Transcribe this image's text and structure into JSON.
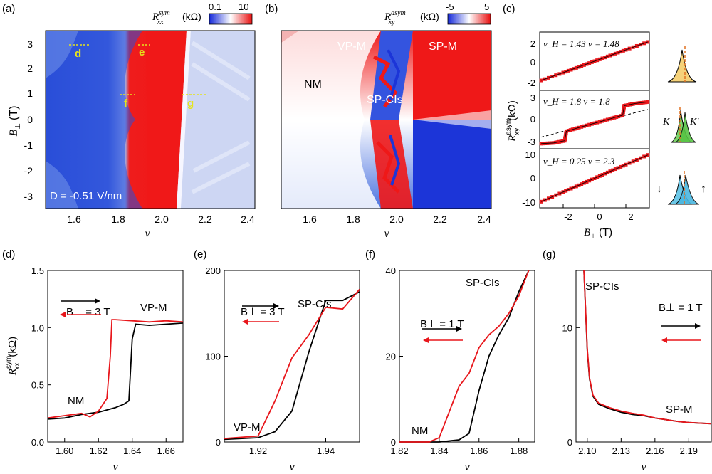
{
  "panels": {
    "a": {
      "letter": "(a)",
      "cb_label": "R",
      "cb_sup": "sym",
      "cb_sub": "xx",
      "cb_unit": "(kΩ)",
      "cb_min": "0.1",
      "cb_max": "10",
      "xlabel": "ν",
      "ylabel": "B",
      "ylabel_sub": "⊥",
      "ylabel_unit": "(T)",
      "xticks": [
        "1.6",
        "1.8",
        "2.0",
        "2.2",
        "2.4"
      ],
      "yticks": [
        "3",
        "2",
        "1",
        "0",
        "-1",
        "-2",
        "-3"
      ],
      "annotation": "D = -0.51 V/nm",
      "markers": [
        "d",
        "e",
        "f",
        "g"
      ]
    },
    "b": {
      "letter": "(b)",
      "cb_label": "R",
      "cb_sup": "asym",
      "cb_sub": "xy",
      "cb_unit": "(kΩ)",
      "cb_min": "-5",
      "cb_max": "5",
      "xlabel": "ν",
      "xticks": [
        "1.6",
        "1.8",
        "2.0",
        "2.2",
        "2.4"
      ],
      "region_labels": [
        "NM",
        "VP-M",
        "SP-M",
        "SP-CIs"
      ]
    },
    "c": {
      "letter": "(c)",
      "ylabel": "R",
      "ylabel_sup": "asym",
      "ylabel_sub": "xy",
      "ylabel_unit": "(kΩ)",
      "xlabel": "B",
      "xlabel_sub": "⊥",
      "xlabel_unit": "(T)",
      "xticks": [
        "-2",
        "0",
        "2"
      ],
      "sub_yticks": [
        [
          "2",
          "0",
          "-2"
        ],
        [
          "3",
          "0",
          "-3"
        ],
        [
          "10",
          "0",
          "-10"
        ]
      ],
      "sub_labels": [
        "ν_H = 1.43  ν = 1.48",
        "ν_H = 1.8  ν = 1.8",
        "ν_H = 0.25  ν = 2.3"
      ],
      "schematic_labels": [
        "K",
        "K'",
        "↓",
        "↑"
      ]
    },
    "d": {
      "letter": "(d)",
      "field": "B⊥ = 3 T",
      "labels": [
        "NM",
        "VP-M"
      ],
      "ylabel": "R",
      "ylabel_sup": "sym",
      "ylabel_sub": "xx",
      "ylabel_unit": "(kΩ)",
      "xlabel": "ν"
    },
    "e": {
      "letter": "(e)",
      "field": "B⊥ = 3 T",
      "labels": [
        "SP-CIs",
        "VP-M"
      ],
      "xlabel": "ν"
    },
    "f": {
      "letter": "(f)",
      "field": "B⊥ = 1 T",
      "labels": [
        "SP-CIs",
        "NM"
      ],
      "xlabel": "ν"
    },
    "g": {
      "letter": "(g)",
      "field": "B⊥ = 1 T",
      "labels": [
        "SP-CIs",
        "SP-M"
      ],
      "xlabel": "ν"
    }
  },
  "colors": {
    "forward": "#000000",
    "backward": "#e8161b",
    "marker": "#e5e41b",
    "hi": "#ef1818",
    "lo": "#1c35d8"
  },
  "chart_data": [
    {
      "type": "heatmap",
      "panel": "a",
      "title": "",
      "xlabel": "ν",
      "ylabel": "B⊥ (T)",
      "xlim": [
        1.48,
        2.46
      ],
      "ylim": [
        -3.5,
        3.5
      ],
      "colorbar": {
        "label": "Rxx sym (kΩ)",
        "range": [
          0.1,
          10
        ],
        "scale": "log"
      },
      "annotation": "D = -0.51 V/nm",
      "line_cuts": [
        {
          "name": "d",
          "nu": [
            1.58,
            1.68
          ],
          "B": 3
        },
        {
          "name": "e",
          "nu": [
            1.91,
            1.95
          ],
          "B": 3
        },
        {
          "name": "f",
          "nu": [
            1.82,
            1.89
          ],
          "B": 1
        },
        {
          "name": "g",
          "nu": [
            2.09,
            2.2
          ],
          "B": 1
        }
      ]
    },
    {
      "type": "heatmap",
      "panel": "b",
      "title": "",
      "xlabel": "ν",
      "xlim": [
        1.48,
        2.46
      ],
      "ylim": [
        -3.5,
        3.5
      ],
      "colorbar": {
        "label": "Rxy asym (kΩ)",
        "range": [
          -5,
          5
        ]
      },
      "regions": [
        "NM",
        "VP-M",
        "SP-M",
        "SP-CIs"
      ]
    },
    {
      "type": "scatter",
      "panel": "c",
      "xlabel": "B⊥ (T)",
      "ylabel": "Rxy asym (kΩ)",
      "xlim": [
        -3.5,
        3.5
      ],
      "subplots": [
        {
          "label": "ν_H = 1.43  ν = 1.48",
          "ylim": [
            -2.2,
            2.2
          ],
          "x": [
            -3.4,
            -2,
            -1,
            0,
            1,
            2,
            3.4
          ],
          "y": [
            -1.45,
            -0.86,
            -0.43,
            0,
            0.43,
            0.86,
            1.45
          ]
        },
        {
          "label": "ν_H = 1.8  ν = 1.8",
          "ylim": [
            -3.5,
            4.5
          ],
          "x": [
            -3.4,
            -2.6,
            -1.9,
            -1.8,
            -1,
            0,
            1,
            1.8,
            1.9,
            2.6,
            3.4
          ],
          "y": [
            -2.8,
            -2.7,
            -2.4,
            -1.1,
            -0.6,
            0,
            0.6,
            1.1,
            2.4,
            2.7,
            2.9
          ],
          "reference_line": {
            "x": [
              -3.4,
              3.4
            ],
            "y": [
              -1.9,
              1.9
            ]
          }
        },
        {
          "label": "ν_H = 0.25  ν = 2.3",
          "ylim": [
            -11,
            11
          ],
          "x": [
            -3.4,
            -2,
            -1,
            0,
            1,
            2,
            3.4
          ],
          "y": [
            -8.7,
            -5.1,
            -2.6,
            0,
            2.6,
            5.1,
            8.7
          ]
        }
      ]
    },
    {
      "type": "line",
      "panel": "d",
      "xlabel": "ν",
      "ylabel": "Rxx sym (kΩ)",
      "xlim": [
        1.59,
        1.67
      ],
      "ylim": [
        0,
        1.5
      ],
      "xticks": [
        1.6,
        1.62,
        1.64,
        1.66
      ],
      "yticks": [
        0.0,
        0.5,
        1.0,
        1.5
      ],
      "series": [
        {
          "x": [
            1.59,
            1.6,
            1.61,
            1.62,
            1.63,
            1.635,
            1.638,
            1.64,
            1.642,
            1.65,
            1.66,
            1.67
          ],
          "y": [
            0.2,
            0.21,
            0.24,
            0.26,
            0.3,
            0.33,
            0.36,
            0.9,
            1.03,
            1.02,
            1.03,
            1.04
          ]
        },
        {
          "x": [
            1.59,
            1.6,
            1.61,
            1.615,
            1.62,
            1.625,
            1.627,
            1.628,
            1.63,
            1.64,
            1.65,
            1.66,
            1.67
          ],
          "y": [
            0.21,
            0.23,
            0.25,
            0.22,
            0.27,
            0.38,
            0.75,
            1.07,
            1.07,
            1.06,
            1.05,
            1.06,
            1.05
          ]
        }
      ]
    },
    {
      "type": "line",
      "panel": "e",
      "xlabel": "ν",
      "xlim": [
        1.91,
        1.95
      ],
      "ylim": [
        0,
        200
      ],
      "xticks": [
        1.92,
        1.94
      ],
      "yticks": [
        0,
        100,
        200
      ],
      "series": [
        {
          "x": [
            1.91,
            1.92,
            1.925,
            1.93,
            1.935,
            1.94,
            1.945,
            1.95
          ],
          "y": [
            3,
            5,
            12,
            36,
            105,
            165,
            165,
            175
          ]
        },
        {
          "x": [
            1.91,
            1.92,
            1.925,
            1.93,
            1.935,
            1.94,
            1.945,
            1.95
          ],
          "y": [
            4,
            7,
            48,
            98,
            125,
            157,
            155,
            178
          ]
        }
      ]
    },
    {
      "type": "line",
      "panel": "f",
      "xlabel": "ν",
      "xlim": [
        1.82,
        1.888
      ],
      "ylim": [
        0,
        40
      ],
      "xticks": [
        1.82,
        1.84,
        1.86,
        1.88
      ],
      "yticks": [
        0,
        20,
        40
      ],
      "series": [
        {
          "x": [
            1.82,
            1.84,
            1.85,
            1.855,
            1.86,
            1.865,
            1.87,
            1.875,
            1.88,
            1.885
          ],
          "y": [
            0,
            0,
            0.5,
            2,
            12,
            20,
            25,
            29,
            35,
            40
          ]
        },
        {
          "x": [
            1.82,
            1.835,
            1.84,
            1.845,
            1.85,
            1.855,
            1.86,
            1.865,
            1.87,
            1.875,
            1.88,
            1.885
          ],
          "y": [
            0,
            0,
            1,
            7,
            13,
            16,
            22,
            25,
            27,
            30,
            34,
            40
          ]
        }
      ]
    },
    {
      "type": "line",
      "panel": "g",
      "xlabel": "ν",
      "xlim": [
        2.09,
        2.21
      ],
      "ylim": [
        0,
        15
      ],
      "xticks": [
        2.1,
        2.13,
        2.16,
        2.19
      ],
      "yticks": [
        0,
        10
      ],
      "series": [
        {
          "x": [
            2.097,
            2.1,
            2.102,
            2.105,
            2.11,
            2.12,
            2.13,
            2.14,
            2.15,
            2.16,
            2.17,
            2.18,
            2.19,
            2.21
          ],
          "y": [
            15,
            8,
            5.5,
            4.0,
            3.3,
            2.9,
            2.6,
            2.4,
            2.3,
            2.1,
            1.95,
            1.8,
            1.7,
            1.6
          ]
        },
        {
          "x": [
            2.097,
            2.1,
            2.102,
            2.105,
            2.11,
            2.12,
            2.13,
            2.14,
            2.15,
            2.16,
            2.17,
            2.18,
            2.19,
            2.21
          ],
          "y": [
            15,
            8.2,
            5.6,
            4.1,
            3.4,
            3.0,
            2.7,
            2.5,
            2.35,
            2.1,
            1.95,
            1.8,
            1.7,
            1.6
          ]
        }
      ]
    }
  ]
}
